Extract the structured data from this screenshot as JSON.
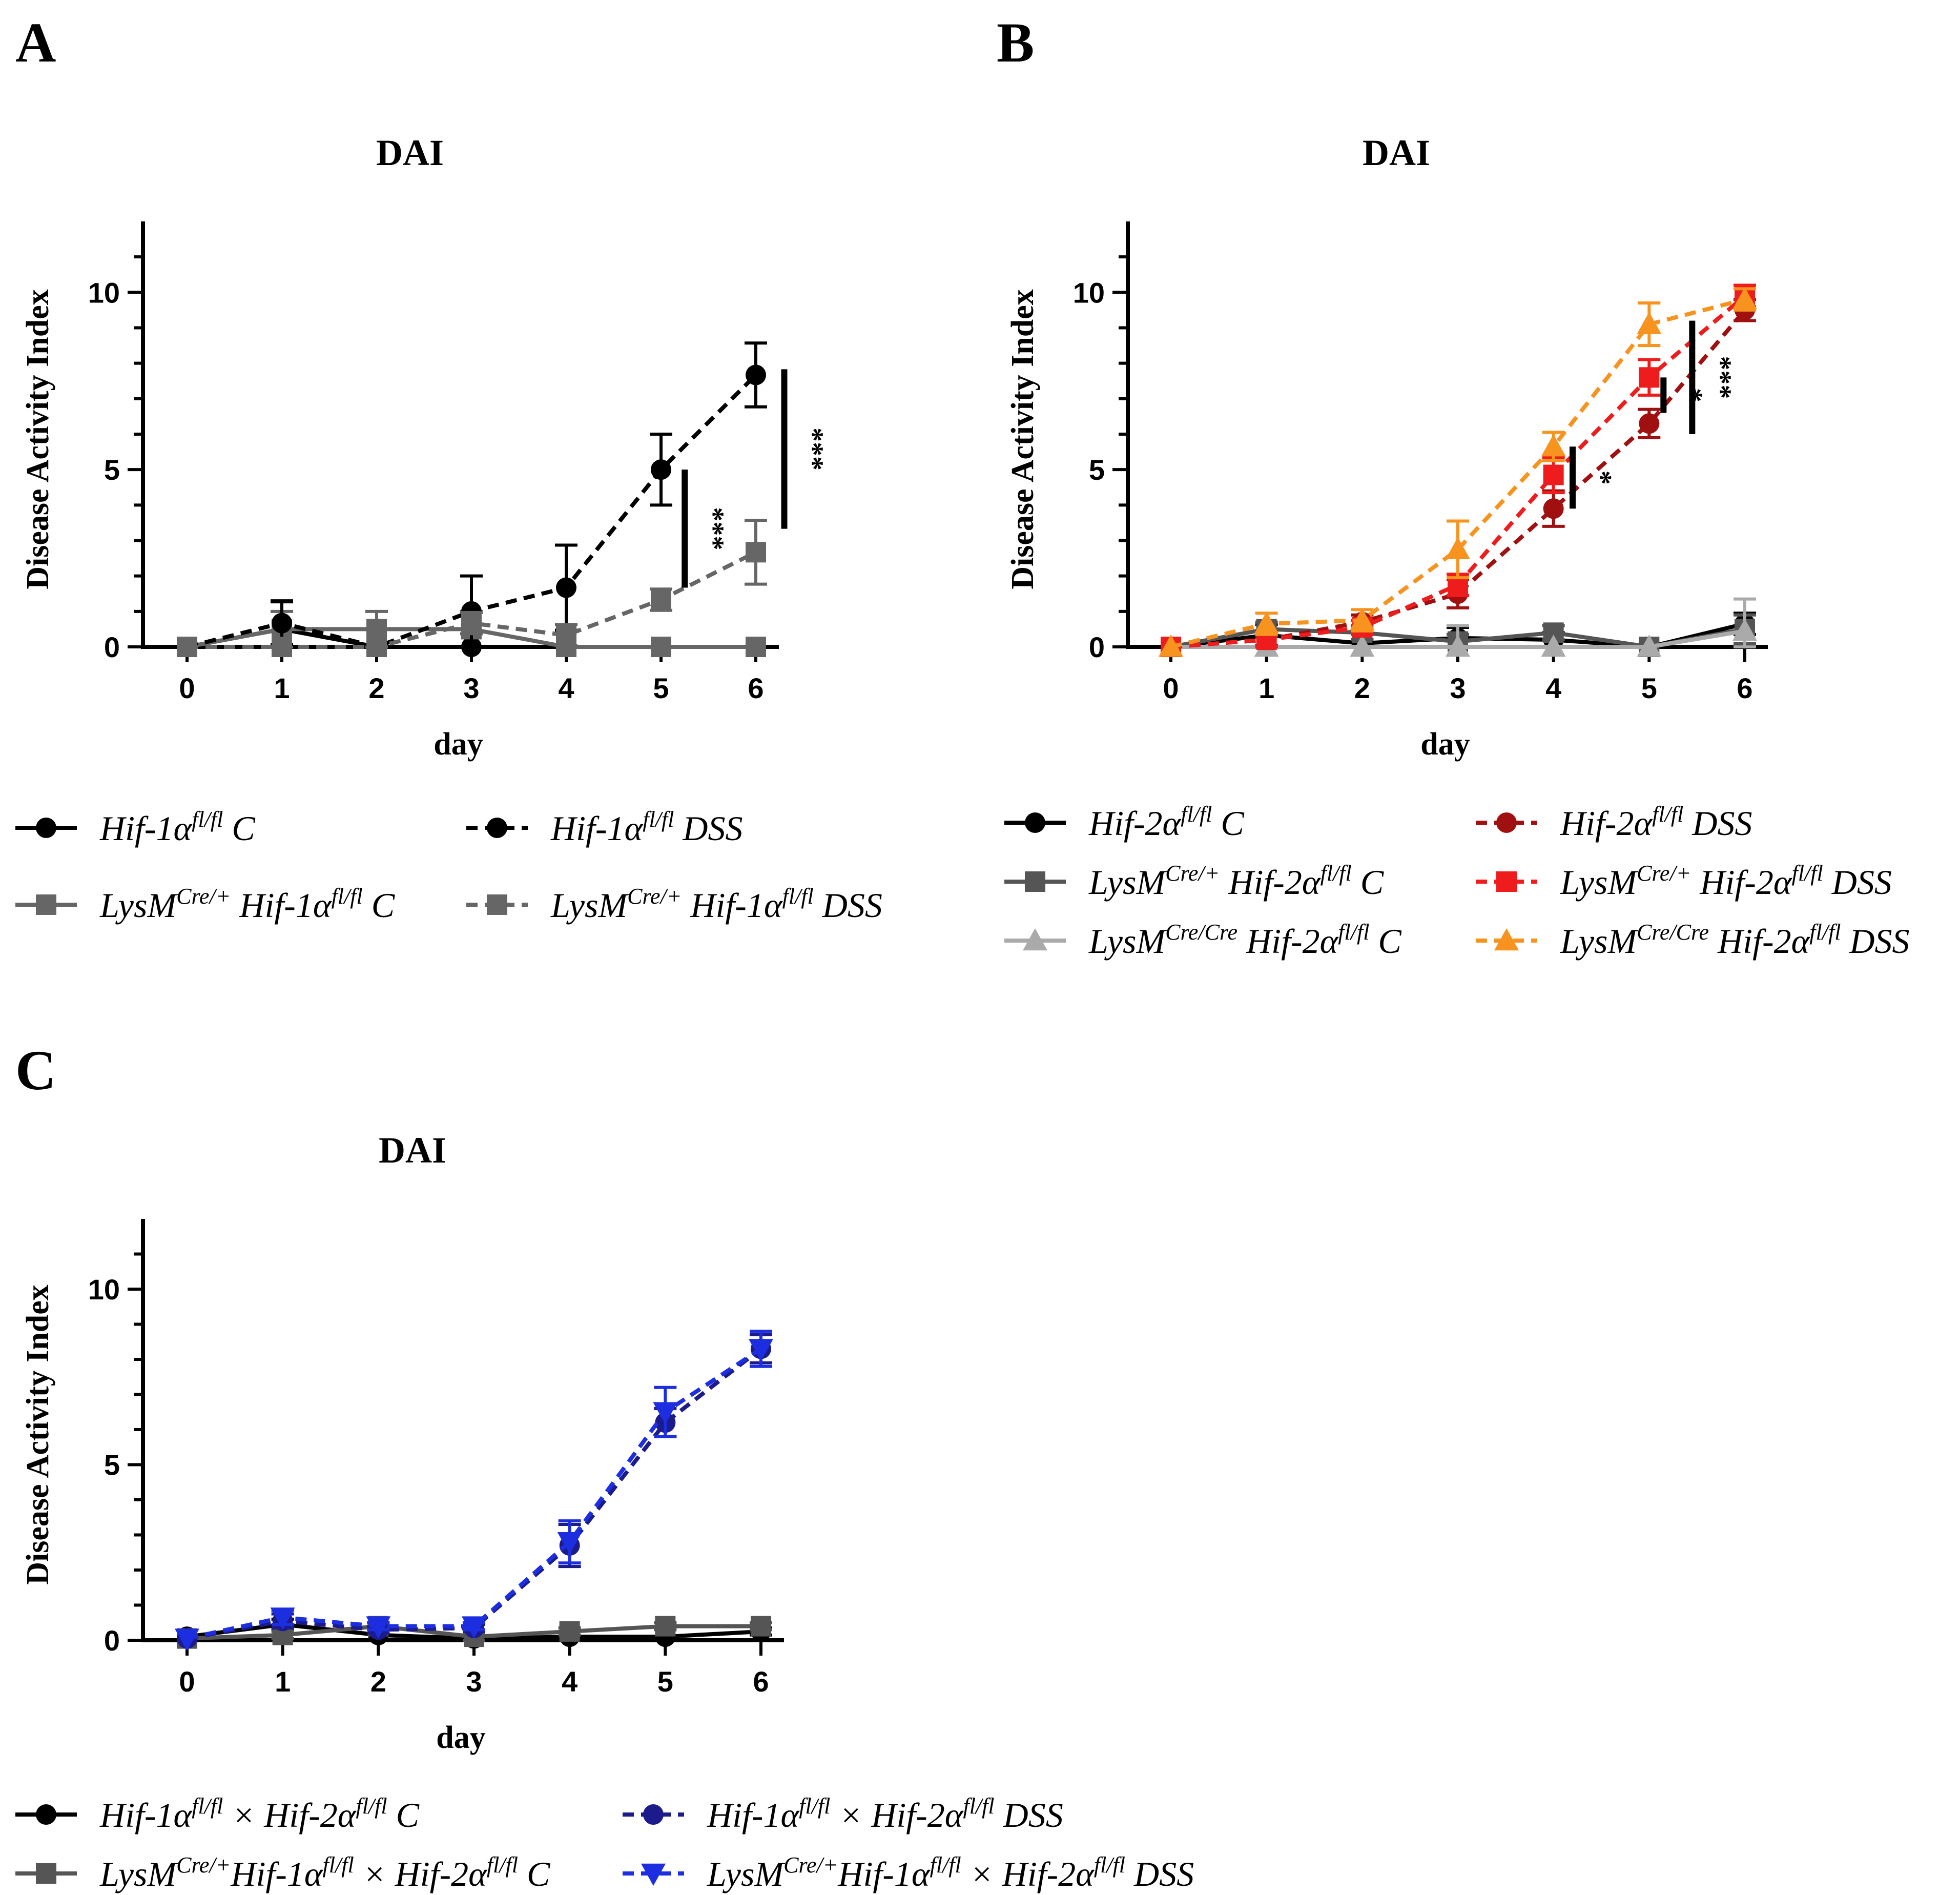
{
  "chart_data": [
    {
      "panel": "A",
      "type": "line",
      "title": "DAI",
      "xlabel": "day",
      "ylabel": "Disease Activity Index",
      "categories": [
        "0",
        "1",
        "2",
        "3",
        "4",
        "5",
        "6"
      ],
      "yticks": [
        "0",
        "5",
        "10"
      ],
      "ylim": [
        0,
        12
      ],
      "series": [
        {
          "name": "Hif-1α fl/fl C",
          "legend": [
            [
              "Hif-1α",
              ""
            ],
            [
              "fl/fl",
              "sup"
            ],
            [
              " C",
              ""
            ]
          ],
          "color": "#000000",
          "dash": false,
          "marker": "circle",
          "values": [
            0,
            0.5,
            0,
            0,
            0,
            0,
            0
          ],
          "err": [
            0,
            0.8,
            0,
            0,
            0,
            0,
            0
          ]
        },
        {
          "name": "LysM Cre/+ Hif-1α fl/fl C",
          "legend": [
            [
              "LysM",
              ""
            ],
            [
              "Cre/+",
              "sup"
            ],
            [
              " Hif-1α",
              ""
            ],
            [
              "fl/fl",
              "sup"
            ],
            [
              " C",
              ""
            ]
          ],
          "color": "#666666",
          "dash": false,
          "marker": "square",
          "values": [
            0,
            0.5,
            0.5,
            0.5,
            0,
            0,
            0
          ],
          "err": [
            0,
            0.5,
            0.5,
            0.5,
            0,
            0,
            0
          ]
        },
        {
          "name": "Hif-1α fl/fl DSS",
          "legend": [
            [
              "Hif-1α",
              ""
            ],
            [
              "fl/fl",
              "sup"
            ],
            [
              " DSS",
              ""
            ]
          ],
          "color": "#000000",
          "dash": true,
          "marker": "circle",
          "values": [
            0,
            0.67,
            0,
            1.0,
            1.67,
            5.0,
            7.67
          ],
          "err": [
            0,
            0.6,
            0,
            1.0,
            1.2,
            1.0,
            0.9
          ]
        },
        {
          "name": "LysM Cre/+ Hif-1α fl/fl DSS",
          "legend": [
            [
              "LysM",
              ""
            ],
            [
              "Cre/+",
              "sup"
            ],
            [
              " Hif-1α",
              ""
            ],
            [
              "fl/fl",
              "sup"
            ],
            [
              " DSS",
              ""
            ]
          ],
          "color": "#666666",
          "dash": true,
          "marker": "square",
          "values": [
            0,
            0,
            0,
            0.67,
            0.33,
            1.33,
            2.67
          ],
          "err": [
            0,
            0,
            0,
            0.3,
            0.3,
            0.3,
            0.9
          ]
        }
      ],
      "significance": [
        {
          "label": "***",
          "y_range": [
            1.67,
            5.0
          ],
          "between": [
            5,
            6
          ],
          "pos": 0.25
        },
        {
          "label": "***",
          "y_range": [
            3.33,
            7.83
          ],
          "between": [
            6,
            7
          ],
          "pos": 0.3
        }
      ]
    },
    {
      "panel": "B",
      "type": "line",
      "title": "DAI",
      "xlabel": "day",
      "ylabel": "Disease Activity Index",
      "categories": [
        "0",
        "1",
        "2",
        "3",
        "4",
        "5",
        "6"
      ],
      "yticks": [
        "0",
        "5",
        "10"
      ],
      "ylim": [
        0,
        12
      ],
      "series": [
        {
          "name": "Hif-2α fl/fl C",
          "legend": [
            [
              "Hif-2α",
              ""
            ],
            [
              "fl/fl",
              "sup"
            ],
            [
              " C",
              ""
            ]
          ],
          "color": "#000000",
          "dash": false,
          "marker": "circle",
          "values": [
            0,
            0.33,
            0.1,
            0.25,
            0.2,
            0,
            0.65
          ],
          "err": [
            0,
            0.3,
            0.1,
            0.3,
            0.2,
            0,
            0.3
          ]
        },
        {
          "name": "LysM Cre/+ Hif-2α fl/fl C",
          "legend": [
            [
              "LysM",
              ""
            ],
            [
              "Cre/+",
              "sup"
            ],
            [
              " Hif-2α",
              ""
            ],
            [
              "fl/fl",
              "sup"
            ],
            [
              " C",
              ""
            ]
          ],
          "color": "#555555",
          "dash": false,
          "marker": "square",
          "values": [
            0,
            0.5,
            0.4,
            0.15,
            0.4,
            0,
            0.5
          ],
          "err": [
            0,
            0.2,
            0.2,
            0.2,
            0.2,
            0,
            0.4
          ]
        },
        {
          "name": "LysM Cre/Cre Hif-2α fl/fl C",
          "legend": [
            [
              "LysM",
              ""
            ],
            [
              "Cre/Cre",
              "sup"
            ],
            [
              " Hif-2α",
              ""
            ],
            [
              "fl/fl",
              "sup"
            ],
            [
              " C",
              ""
            ]
          ],
          "color": "#aaaaaa",
          "dash": false,
          "marker": "triangle",
          "values": [
            0,
            0,
            0,
            0,
            0,
            0,
            0.45
          ],
          "err": [
            0,
            0,
            0,
            0.6,
            0,
            0,
            0.9
          ]
        },
        {
          "name": "Hif-2α fl/fl DSS",
          "legend": [
            [
              "Hif-2α",
              ""
            ],
            [
              "fl/fl",
              "sup"
            ],
            [
              " DSS",
              ""
            ]
          ],
          "color": "#a01010",
          "dash": true,
          "marker": "circle",
          "values": [
            0,
            0.2,
            0.7,
            1.5,
            3.9,
            6.3,
            9.5
          ],
          "err": [
            0,
            0.2,
            0.2,
            0.4,
            0.5,
            0.4,
            0.3
          ]
        },
        {
          "name": "LysM Cre/+ Hif-2α fl/fl DSS",
          "legend": [
            [
              "LysM",
              ""
            ],
            [
              "Cre/+",
              "sup"
            ],
            [
              " Hif-2α",
              ""
            ],
            [
              "fl/fl",
              "sup"
            ],
            [
              " DSS",
              ""
            ]
          ],
          "color": "#ee1c1c",
          "dash": true,
          "marker": "square",
          "values": [
            0,
            0.2,
            0.55,
            1.75,
            4.85,
            7.6,
            9.9
          ],
          "err": [
            0,
            0.2,
            0.2,
            0.3,
            0.5,
            0.5,
            0.3
          ]
        },
        {
          "name": "LysM Cre/Cre Hif-2α fl/fl DSS",
          "legend": [
            [
              "LysM",
              ""
            ],
            [
              "Cre/Cre",
              "sup"
            ],
            [
              " Hif-2α",
              ""
            ],
            [
              "fl/fl",
              "sup"
            ],
            [
              " DSS",
              ""
            ]
          ],
          "color": "#f7931e",
          "dash": true,
          "marker": "triangle",
          "values": [
            0,
            0.65,
            0.75,
            2.75,
            5.65,
            9.1,
            9.8
          ],
          "err": [
            0,
            0.3,
            0.3,
            0.8,
            0.4,
            0.6,
            0.3
          ]
        }
      ],
      "significance": [
        {
          "label": "*",
          "y_range": [
            3.9,
            5.65
          ],
          "between": [
            4,
            5
          ],
          "pos": 0.2
        },
        {
          "label": "*",
          "y_range": [
            6.6,
            7.6
          ],
          "between": [
            5,
            6
          ],
          "pos": 0.15
        },
        {
          "label": "***",
          "y_range": [
            6.0,
            9.2
          ],
          "between": [
            5,
            6
          ],
          "pos": 0.45
        }
      ]
    },
    {
      "panel": "C",
      "type": "line",
      "title": "DAI",
      "xlabel": "day",
      "ylabel": "Disease Activity Index",
      "categories": [
        "0",
        "1",
        "2",
        "3",
        "4",
        "5",
        "6"
      ],
      "yticks": [
        "0",
        "5",
        "10"
      ],
      "ylim": [
        0,
        12
      ],
      "series": [
        {
          "name": "Hif-1α fl/fl × Hif-2α fl/fl C",
          "legend": [
            [
              "Hif-1α",
              ""
            ],
            [
              "fl/fl",
              "sup"
            ],
            [
              " × Hif-2α",
              ""
            ],
            [
              "fl/fl",
              "sup"
            ],
            [
              " C",
              ""
            ]
          ],
          "color": "#000000",
          "dash": false,
          "marker": "circle",
          "values": [
            0.1,
            0.45,
            0.15,
            0.05,
            0.1,
            0.1,
            0.25
          ],
          "err": [
            0,
            0.15,
            0,
            0,
            0,
            0,
            0.1
          ]
        },
        {
          "name": "LysM Cre/+ Hif-1α fl/fl × Hif-2α fl/fl C",
          "legend": [
            [
              "LysM",
              ""
            ],
            [
              "Cre/+",
              "sup"
            ],
            [
              "Hif-1α",
              ""
            ],
            [
              "fl/fl",
              "sup"
            ],
            [
              " × Hif-2α",
              ""
            ],
            [
              "fl/fl",
              "sup"
            ],
            [
              " C",
              ""
            ]
          ],
          "color": "#555555",
          "dash": false,
          "marker": "square",
          "values": [
            0.05,
            0.15,
            0.4,
            0.1,
            0.25,
            0.4,
            0.4
          ],
          "err": [
            0,
            0.1,
            0.1,
            0.1,
            0.1,
            0.1,
            0.1
          ]
        },
        {
          "name": "Hif-1α fl/fl × Hif-2α fl/fl DSS",
          "legend": [
            [
              "Hif-1α",
              ""
            ],
            [
              "fl/fl",
              "sup"
            ],
            [
              " × Hif-2α",
              ""
            ],
            [
              "fl/fl",
              "sup"
            ],
            [
              " DSS",
              ""
            ]
          ],
          "color": "#1b1b8c",
          "dash": true,
          "marker": "circle",
          "values": [
            0.05,
            0.55,
            0.3,
            0.35,
            2.7,
            6.2,
            8.3
          ],
          "err": [
            0,
            0.2,
            0.1,
            0.1,
            0.6,
            0.4,
            0.4
          ]
        },
        {
          "name": "LysM Cre/+ Hif-1α fl/fl × Hif-2α fl/fl DSS",
          "legend": [
            [
              "LysM",
              ""
            ],
            [
              "Cre/+",
              "sup"
            ],
            [
              "Hif-1α",
              ""
            ],
            [
              "fl/fl",
              "sup"
            ],
            [
              " × Hif-2α",
              ""
            ],
            [
              "fl/fl",
              "sup"
            ],
            [
              " DSS",
              ""
            ]
          ],
          "color": "#1c2ee0",
          "dash": true,
          "marker": "triangle-down",
          "values": [
            0.05,
            0.65,
            0.4,
            0.4,
            2.8,
            6.5,
            8.3
          ],
          "err": [
            0,
            0.2,
            0.1,
            0.1,
            0.6,
            0.7,
            0.5
          ]
        }
      ],
      "significance": []
    }
  ]
}
